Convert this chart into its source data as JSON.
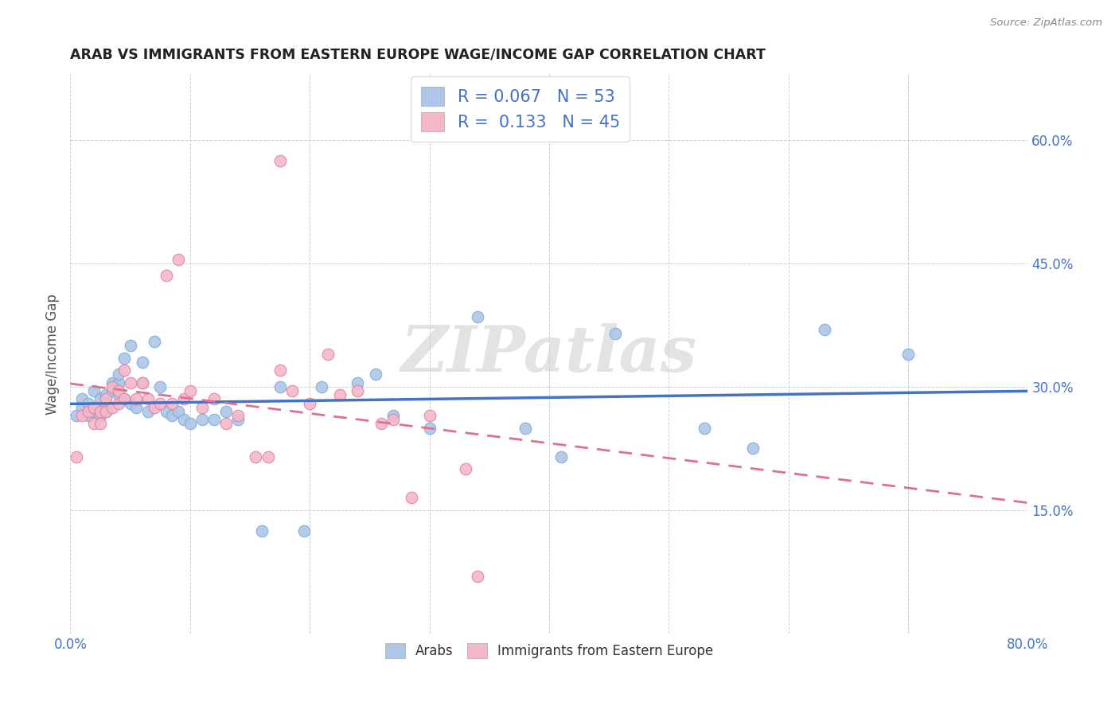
{
  "title": "ARAB VS IMMIGRANTS FROM EASTERN EUROPE WAGE/INCOME GAP CORRELATION CHART",
  "source": "Source: ZipAtlas.com",
  "ylabel": "Wage/Income Gap",
  "xlim": [
    0.0,
    0.8
  ],
  "ylim": [
    0.0,
    0.68
  ],
  "ytick_positions": [
    0.0,
    0.15,
    0.3,
    0.45,
    0.6
  ],
  "ytick_labels": [
    "",
    "15.0%",
    "30.0%",
    "45.0%",
    "60.0%"
  ],
  "grid_color": "#d0d0d0",
  "background_color": "#ffffff",
  "watermark": "ZIPatlas",
  "legend_R1": "0.067",
  "legend_N1": "53",
  "legend_R2": "0.133",
  "legend_N2": "45",
  "series1_color": "#aec6e8",
  "series1_edge": "#7aadd4",
  "series2_color": "#f4b8c8",
  "series2_edge": "#e080a0",
  "line1_color": "#4472c4",
  "line2_color": "#e07090",
  "arab_x": [
    0.005,
    0.01,
    0.01,
    0.015,
    0.015,
    0.02,
    0.02,
    0.025,
    0.025,
    0.025,
    0.03,
    0.03,
    0.03,
    0.035,
    0.035,
    0.04,
    0.04,
    0.04,
    0.045,
    0.045,
    0.05,
    0.05,
    0.055,
    0.06,
    0.06,
    0.065,
    0.07,
    0.075,
    0.08,
    0.085,
    0.09,
    0.095,
    0.1,
    0.11,
    0.12,
    0.13,
    0.14,
    0.16,
    0.175,
    0.195,
    0.21,
    0.24,
    0.255,
    0.27,
    0.3,
    0.34,
    0.38,
    0.41,
    0.455,
    0.53,
    0.57,
    0.63,
    0.7
  ],
  "arab_y": [
    0.265,
    0.275,
    0.285,
    0.265,
    0.28,
    0.27,
    0.295,
    0.275,
    0.265,
    0.285,
    0.29,
    0.28,
    0.27,
    0.305,
    0.295,
    0.305,
    0.315,
    0.29,
    0.335,
    0.285,
    0.35,
    0.28,
    0.275,
    0.33,
    0.305,
    0.27,
    0.355,
    0.3,
    0.27,
    0.265,
    0.27,
    0.26,
    0.255,
    0.26,
    0.26,
    0.27,
    0.26,
    0.125,
    0.3,
    0.125,
    0.3,
    0.305,
    0.315,
    0.265,
    0.25,
    0.385,
    0.25,
    0.215,
    0.365,
    0.25,
    0.225,
    0.37,
    0.34
  ],
  "eastern_x": [
    0.005,
    0.01,
    0.015,
    0.02,
    0.02,
    0.025,
    0.025,
    0.03,
    0.03,
    0.035,
    0.035,
    0.04,
    0.04,
    0.045,
    0.045,
    0.05,
    0.055,
    0.06,
    0.065,
    0.07,
    0.075,
    0.08,
    0.085,
    0.09,
    0.095,
    0.1,
    0.11,
    0.12,
    0.13,
    0.14,
    0.155,
    0.165,
    0.175,
    0.185,
    0.2,
    0.215,
    0.225,
    0.24,
    0.26,
    0.27,
    0.285,
    0.3,
    0.33,
    0.175,
    0.34
  ],
  "eastern_y": [
    0.215,
    0.265,
    0.27,
    0.275,
    0.255,
    0.27,
    0.255,
    0.285,
    0.27,
    0.3,
    0.275,
    0.28,
    0.295,
    0.32,
    0.285,
    0.305,
    0.285,
    0.305,
    0.285,
    0.275,
    0.28,
    0.435,
    0.28,
    0.455,
    0.285,
    0.295,
    0.275,
    0.285,
    0.255,
    0.265,
    0.215,
    0.215,
    0.32,
    0.295,
    0.28,
    0.34,
    0.29,
    0.295,
    0.255,
    0.26,
    0.165,
    0.265,
    0.2,
    0.575,
    0.07
  ]
}
